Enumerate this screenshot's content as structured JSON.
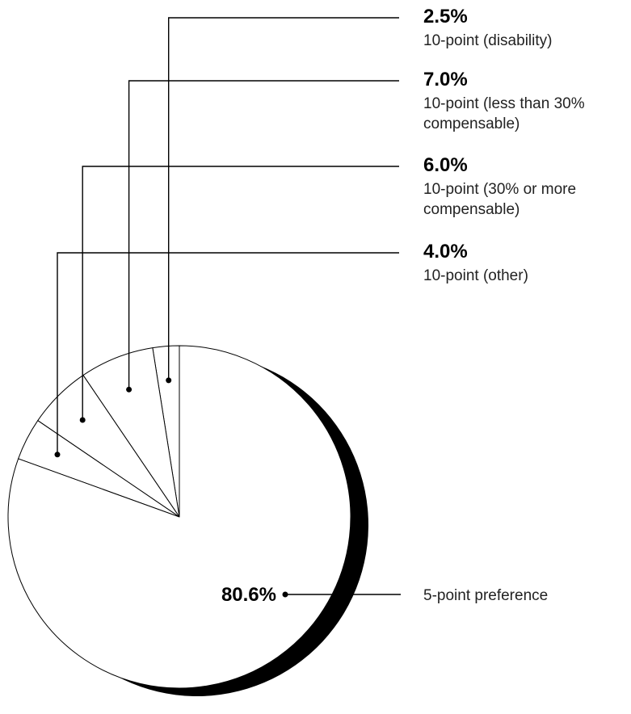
{
  "chart_data": {
    "type": "pie",
    "title": "",
    "colors": {
      "slice_fill": "#ffffff",
      "slice_stroke": "#000000",
      "shadow": "#000000",
      "text": "#000000"
    },
    "slices": [
      {
        "id": "disability",
        "value": 2.5,
        "label": "2.5%",
        "desc_lines": [
          "10-point (disability)"
        ]
      },
      {
        "id": "lt30",
        "value": 7.0,
        "label": "7.0%",
        "desc_lines": [
          "10-point (less than 30%",
          "compensable)"
        ]
      },
      {
        "id": "ge30",
        "value": 6.0,
        "label": "6.0%",
        "desc_lines": [
          "10-point (30% or more",
          "compensable)"
        ]
      },
      {
        "id": "other",
        "value": 4.0,
        "label": "4.0%",
        "desc_lines": [
          "10-point (other)"
        ]
      },
      {
        "id": "fivepoint",
        "value": 80.6,
        "label": "80.6%",
        "desc_lines": [
          "5-point preference"
        ]
      }
    ]
  }
}
